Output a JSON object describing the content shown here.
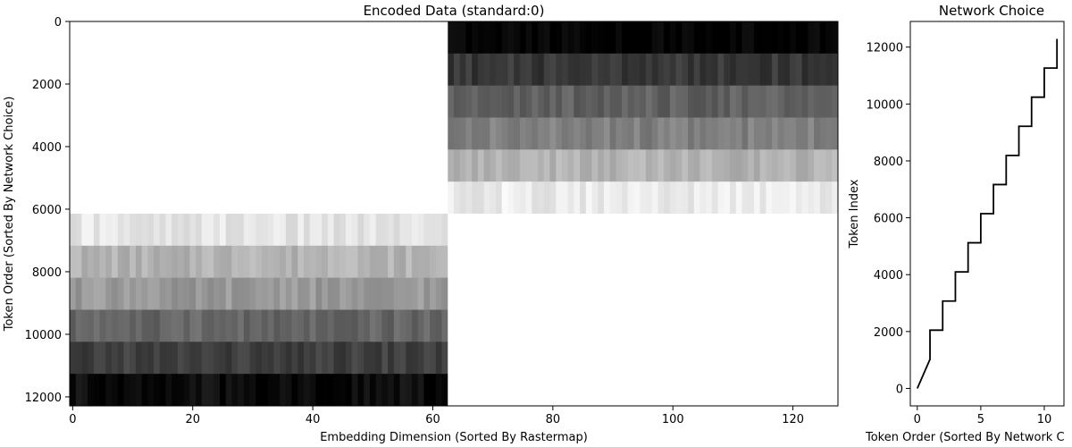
{
  "chart_data": [
    {
      "type": "heatmap",
      "title": "Encoded Data (standard:0)",
      "xlabel": "Embedding Dimension (Sorted By Rastermap)",
      "ylabel": "Token Order (Sorted By Network Choice)",
      "xlim": [
        -0.5,
        127.5
      ],
      "ylim": [
        12288,
        0
      ],
      "xticks": [
        0,
        20,
        40,
        60,
        80,
        100,
        120
      ],
      "yticks": [
        0,
        2000,
        4000,
        6000,
        8000,
        10000,
        12000
      ],
      "colormap": "gray_r",
      "block_boundary_dimension": 63,
      "row_band_size": 1024,
      "left_block": {
        "dimensions": [
          0,
          62
        ],
        "band_darkness": [
          0,
          0,
          0,
          0,
          0,
          0,
          0.1,
          0.3,
          0.4,
          0.6,
          0.75,
          0.95
        ]
      },
      "right_block": {
        "dimensions": [
          63,
          127
        ],
        "band_darkness": [
          1.0,
          0.78,
          0.62,
          0.5,
          0.3,
          0.08,
          0,
          0,
          0,
          0,
          0,
          0
        ]
      }
    },
    {
      "type": "line",
      "title": "Network Choice",
      "xlabel": "Token Order (Sorted By Network C",
      "ylabel": "Token Index",
      "x": [
        0,
        1,
        1,
        2,
        2,
        3,
        3,
        4,
        4,
        5,
        5,
        6,
        6,
        7,
        7,
        8,
        8,
        9,
        9,
        10,
        10,
        11,
        11
      ],
      "y": [
        0,
        1024,
        2048,
        2048,
        3072,
        3072,
        4096,
        4096,
        5120,
        5120,
        6144,
        6144,
        7168,
        7168,
        8192,
        8192,
        9216,
        9216,
        10240,
        10240,
        11264,
        11264,
        12288
      ],
      "xlim": [
        -0.55,
        11.55
      ],
      "ylim": [
        -614,
        12902
      ],
      "xticks": [
        0,
        5,
        10
      ],
      "yticks": [
        0,
        2000,
        4000,
        6000,
        8000,
        10000,
        12000
      ],
      "color": "#000000"
    }
  ]
}
